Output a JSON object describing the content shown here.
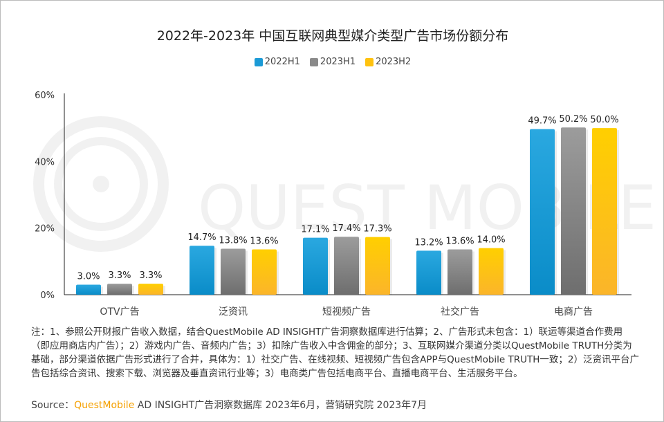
{
  "chart_data": {
    "type": "bar",
    "title": "2022年-2023年 中国互联网典型媒介类型广告市场份额分布",
    "categories": [
      "OTV广告",
      "泛资讯",
      "短视频广告",
      "社交广告",
      "电商广告"
    ],
    "series": [
      {
        "name": "2022H1",
        "values": [
          3.0,
          14.7,
          17.1,
          13.2,
          49.7
        ],
        "labels": [
          "3.0%",
          "14.7%",
          "17.1%",
          "13.2%",
          "49.7%"
        ],
        "color": "#1b9ad6"
      },
      {
        "name": "2023H1",
        "values": [
          3.3,
          13.8,
          17.4,
          13.6,
          50.2
        ],
        "labels": [
          "3.3%",
          "13.8%",
          "17.4%",
          "13.6%",
          "50.2%"
        ],
        "color": "#8a8a8a"
      },
      {
        "name": "2023H2",
        "values": [
          3.3,
          13.6,
          17.3,
          14.0,
          50.0
        ],
        "labels": [
          "3.3%",
          "13.6%",
          "17.3%",
          "14.0%",
          "50.0%"
        ],
        "color": "#ffc20e"
      }
    ],
    "ylim": [
      0,
      60
    ],
    "yticks": [
      "0%",
      "20%",
      "40%",
      "60%"
    ],
    "legend_position": "top",
    "grid": false
  },
  "watermark": "QUEST MOBILE",
  "notes": "注：1、参照公开财报广告收入数据，结合QuestMobile AD INSIGHT广告洞察数据库进行估算；2、广告形式未包含：1）联运等渠道合作费用（即应用商店内广告）；2）游戏内广告、音频内广告；3）扣除广告收入中含佣金的部分；3、互联网媒介渠道分类以QuestMobile TRUTH分类为基础，部分渠道依据广告形式进行了合并，具体为：1）社交广告、在线视频、短视频广告包含APP与QuestMobile TRUTH一致；2）泛资讯平台广告包括综合资讯、搜索下载、浏览器及垂直资讯行业等；3）电商类广告包括电商平台、直播电商平台、生活服务平台。",
  "source": {
    "prefix": "Source：",
    "brand": "QuestMobile",
    "rest": " AD INSIGHT广告洞察数据库 2023年6月，营销研究院 2023年7月"
  }
}
